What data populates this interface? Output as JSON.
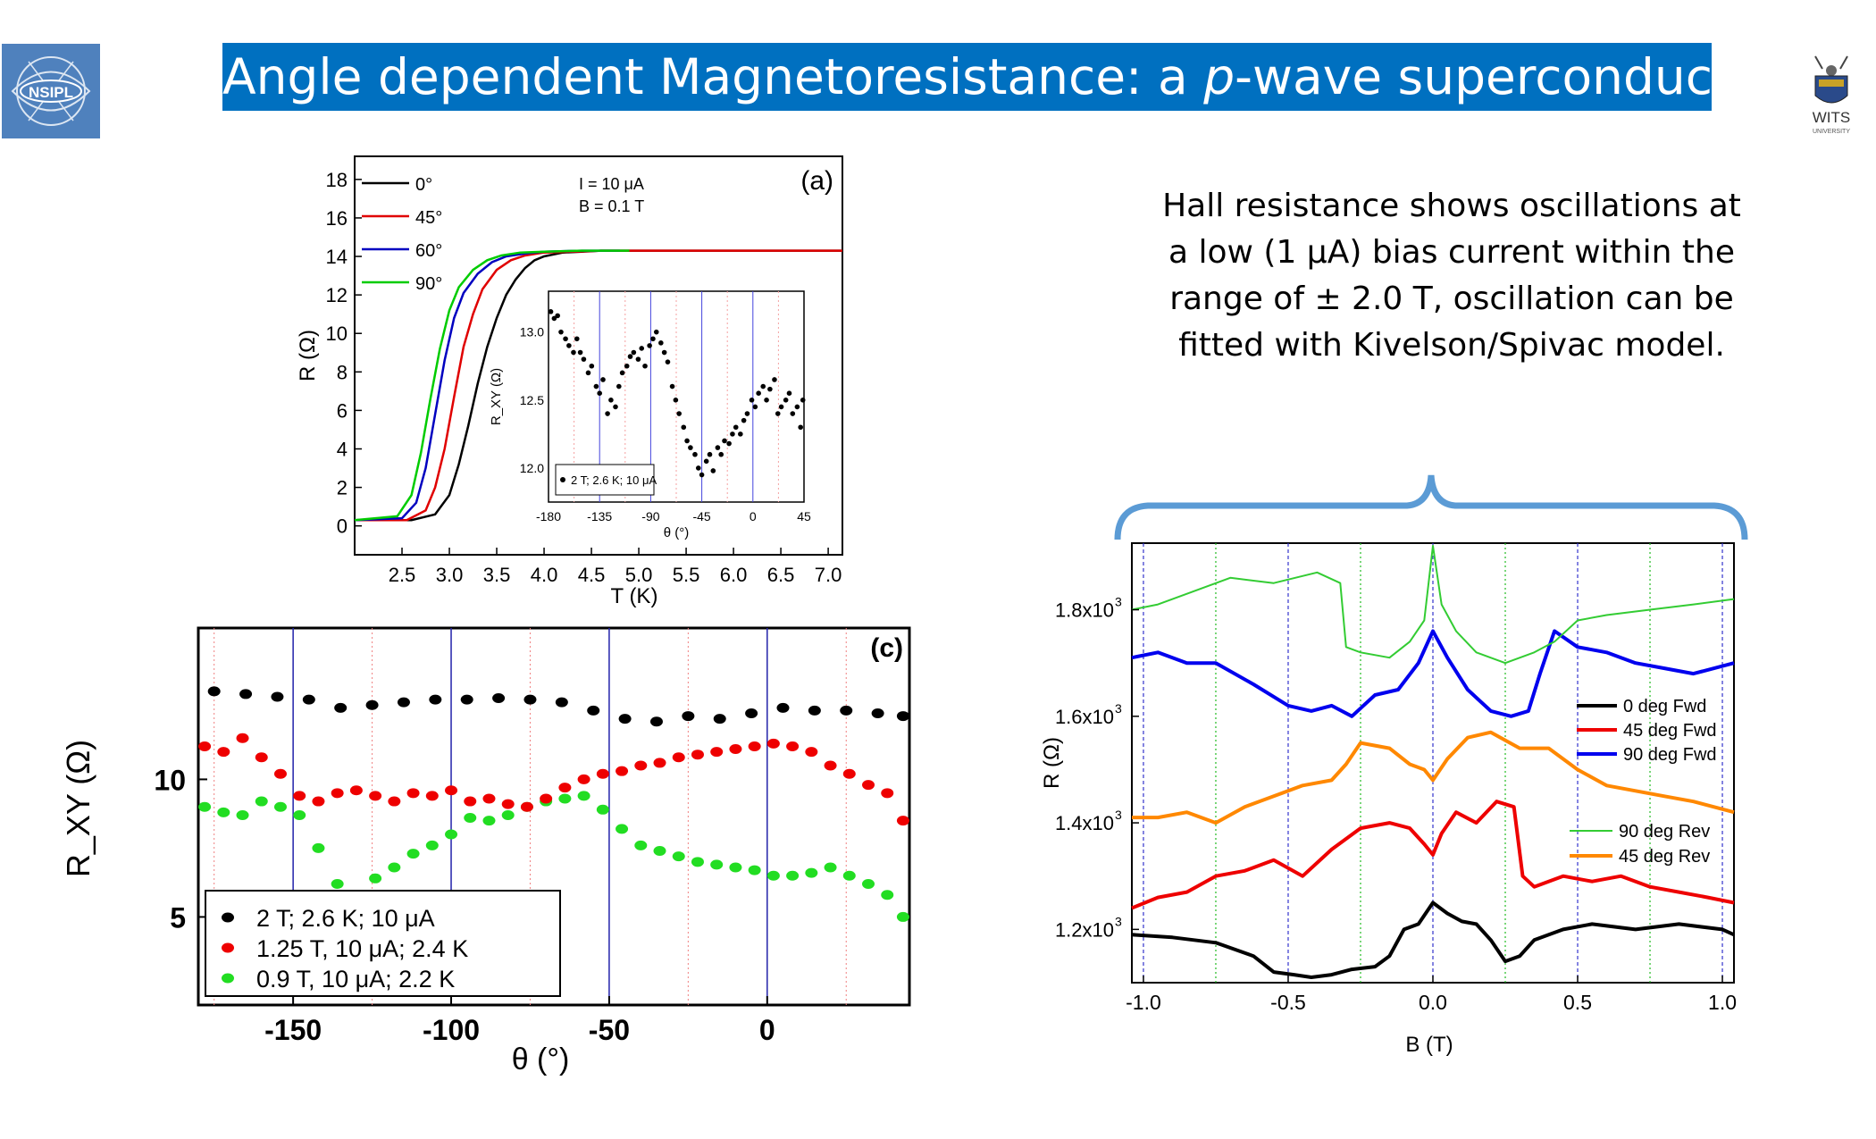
{
  "slide": {
    "title_before": "Angle dependent Magnetoresistance: a ",
    "title_italic": "p",
    "title_after": "-wave superconductivity",
    "logo_left_text": "NSIPL",
    "logo_right_text": "WITS",
    "logo_right_sub": "UNIVERSITY",
    "hall_text": "Hall resistance shows oscillations at a low (1 μA) bias current within the range of ± 2.0 T, oscillation can be fitted with Kivelson/Spivac model."
  },
  "chart_data": [
    {
      "id": "fig-a",
      "type": "line",
      "panel_label": "(a)",
      "xlabel": "T (K)",
      "ylabel": "R (Ω)",
      "xlim": [
        2.0,
        7.15
      ],
      "ylim": [
        -1.5,
        19.2
      ],
      "xticks": [
        2.5,
        3.0,
        3.5,
        4.0,
        4.5,
        5.0,
        5.5,
        6.0,
        6.5,
        7.0
      ],
      "xtick_labels": [
        "2.5",
        "3.0",
        "3.5",
        "4.0",
        "4.5",
        "5.0",
        "5.5",
        "6.0",
        "6.5",
        "7.0"
      ],
      "yticks": [
        0,
        2,
        4,
        6,
        8,
        10,
        12,
        14,
        16,
        18
      ],
      "ytick_labels": [
        "0",
        "2",
        "4",
        "6",
        "8",
        "10",
        "12",
        "14",
        "16",
        "18"
      ],
      "annotations": [
        "I  = 10 μA",
        "B = 0.1 T"
      ],
      "series": [
        {
          "name": "0°",
          "color": "#000000",
          "x": [
            2.0,
            2.6,
            2.85,
            3.0,
            3.1,
            3.2,
            3.3,
            3.4,
            3.5,
            3.6,
            3.7,
            3.8,
            3.9,
            4.0,
            4.2,
            4.4,
            4.6,
            7.15
          ],
          "y": [
            0.3,
            0.3,
            0.6,
            1.6,
            3.2,
            5.2,
            7.4,
            9.3,
            10.8,
            12.0,
            12.8,
            13.4,
            13.8,
            14.0,
            14.2,
            14.25,
            14.3,
            14.3
          ]
        },
        {
          "name": "45°",
          "color": "#e00000",
          "x": [
            2.0,
            2.55,
            2.75,
            2.85,
            2.95,
            3.05,
            3.15,
            3.25,
            3.35,
            3.5,
            3.65,
            3.8,
            4.0,
            4.3,
            4.6,
            7.15
          ],
          "y": [
            0.3,
            0.3,
            0.8,
            2.0,
            4.0,
            6.7,
            9.3,
            11.0,
            12.3,
            13.3,
            13.8,
            14.05,
            14.2,
            14.25,
            14.3,
            14.3
          ]
        },
        {
          "name": "60°",
          "color": "#0000c0",
          "x": [
            2.0,
            2.5,
            2.65,
            2.75,
            2.85,
            2.95,
            3.05,
            3.15,
            3.3,
            3.45,
            3.6,
            3.8,
            4.0,
            4.4,
            4.8
          ],
          "y": [
            0.3,
            0.4,
            1.2,
            3.0,
            5.8,
            8.6,
            10.8,
            12.1,
            13.1,
            13.7,
            14.0,
            14.15,
            14.25,
            14.3,
            14.3
          ]
        },
        {
          "name": "90°",
          "color": "#00cc00",
          "x": [
            2.0,
            2.45,
            2.6,
            2.7,
            2.8,
            2.9,
            3.0,
            3.1,
            3.25,
            3.4,
            3.55,
            3.75,
            4.0,
            4.4,
            4.9
          ],
          "y": [
            0.3,
            0.5,
            1.6,
            3.8,
            6.6,
            9.2,
            11.2,
            12.4,
            13.3,
            13.8,
            14.05,
            14.2,
            14.25,
            14.3,
            14.3
          ]
        }
      ],
      "inset": {
        "xlabel": "θ (°)",
        "ylabel": "R_XY (Ω)",
        "xlim": [
          -180,
          45
        ],
        "ylim": [
          11.75,
          13.3
        ],
        "xticks": [
          -180,
          -135,
          -90,
          -45,
          0,
          45
        ],
        "xtick_labels": [
          "-180",
          "-135",
          "-90",
          "-45",
          "0",
          "45"
        ],
        "yticks": [
          12.0,
          12.5,
          13.0
        ],
        "ytick_labels": [
          "12.0",
          "12.5",
          "13.0"
        ],
        "legend": "2 T; 2.6 K; 10 μA",
        "x": [
          -178,
          -175,
          -172,
          -169,
          -165,
          -162,
          -158,
          -155,
          -152,
          -149,
          -145,
          -142,
          -138,
          -135,
          -132,
          -128,
          -125,
          -121,
          -118,
          -115,
          -111,
          -108,
          -105,
          -101,
          -98,
          -95,
          -91,
          -88,
          -85,
          -81,
          -78,
          -75,
          -71,
          -68,
          -65,
          -61,
          -58,
          -55,
          -51,
          -48,
          -45,
          -41,
          -38,
          -35,
          -31,
          -28,
          -25,
          -21,
          -18,
          -15,
          -11,
          -8,
          -5,
          -1,
          2,
          5,
          9,
          12,
          15,
          19,
          22,
          25,
          29,
          32,
          35,
          39,
          42,
          44
        ],
        "y": [
          13.15,
          13.1,
          13.12,
          13.0,
          12.95,
          12.9,
          12.85,
          12.95,
          12.85,
          12.8,
          12.7,
          12.75,
          12.6,
          12.55,
          12.65,
          12.4,
          12.5,
          12.45,
          12.6,
          12.7,
          12.75,
          12.82,
          12.85,
          12.8,
          12.88,
          12.75,
          12.9,
          12.95,
          13.0,
          12.92,
          12.85,
          12.78,
          12.6,
          12.5,
          12.4,
          12.3,
          12.2,
          12.15,
          12.1,
          12.0,
          11.95,
          12.05,
          12.1,
          11.98,
          12.15,
          12.1,
          12.2,
          12.18,
          12.25,
          12.3,
          12.25,
          12.35,
          12.4,
          12.5,
          12.45,
          12.55,
          12.6,
          12.5,
          12.58,
          12.65,
          12.4,
          12.45,
          12.5,
          12.55,
          12.4,
          12.45,
          12.3,
          12.5
        ]
      }
    },
    {
      "id": "fig-c",
      "type": "scatter",
      "panel_label": "(c)",
      "xlabel": "θ (°)",
      "ylabel": "R_XY (Ω)",
      "xlim": [
        -180,
        45
      ],
      "ylim": [
        1.8,
        15.5
      ],
      "xticks": [
        -150,
        -100,
        -50,
        0
      ],
      "xtick_labels": [
        "-150",
        "-100",
        "-50",
        "0"
      ],
      "yticks": [
        5,
        10
      ],
      "ytick_labels": [
        "5",
        "10"
      ],
      "legend": [
        "2 T; 2.6 K; 10 μA",
        "1.25 T, 10 μA; 2.4 K",
        "0.9 T, 10 μA; 2.2 K"
      ],
      "series": [
        {
          "name": "2 T; 2.6 K; 10 μA",
          "color": "#000000",
          "x": [
            -175,
            -165,
            -155,
            -145,
            -135,
            -125,
            -115,
            -105,
            -95,
            -85,
            -75,
            -65,
            -55,
            -45,
            -35,
            -25,
            -15,
            -5,
            5,
            15,
            25,
            35,
            43
          ],
          "y": [
            13.2,
            13.1,
            13.0,
            12.9,
            12.6,
            12.7,
            12.8,
            12.9,
            12.9,
            12.95,
            12.9,
            12.8,
            12.5,
            12.2,
            12.1,
            12.3,
            12.2,
            12.4,
            12.6,
            12.5,
            12.5,
            12.4,
            12.3
          ]
        },
        {
          "name": "1.25 T, 10 μA; 2.4 K",
          "color": "#ee0000",
          "x": [
            -178,
            -172,
            -166,
            -160,
            -154,
            -148,
            -142,
            -136,
            -130,
            -124,
            -118,
            -112,
            -106,
            -100,
            -94,
            -88,
            -82,
            -76,
            -70,
            -64,
            -58,
            -52,
            -46,
            -40,
            -34,
            -28,
            -22,
            -16,
            -10,
            -4,
            2,
            8,
            14,
            20,
            26,
            32,
            38,
            43
          ],
          "y": [
            11.2,
            11.0,
            11.5,
            10.8,
            10.2,
            9.4,
            9.2,
            9.5,
            9.6,
            9.4,
            9.2,
            9.5,
            9.4,
            9.6,
            9.2,
            9.3,
            9.1,
            9.0,
            9.3,
            9.7,
            10.0,
            10.2,
            10.3,
            10.5,
            10.6,
            10.8,
            10.9,
            11.0,
            11.1,
            11.2,
            11.3,
            11.2,
            11.0,
            10.5,
            10.2,
            9.8,
            9.5,
            8.5
          ]
        },
        {
          "name": "0.9 T, 10 μA; 2.2 K",
          "color": "#22dd22",
          "x": [
            -178,
            -172,
            -166,
            -160,
            -154,
            -148,
            -142,
            -136,
            -130,
            -124,
            -118,
            -112,
            -106,
            -100,
            -94,
            -88,
            -82,
            -76,
            -70,
            -64,
            -58,
            -52,
            -46,
            -40,
            -34,
            -28,
            -22,
            -16,
            -10,
            -4,
            2,
            8,
            14,
            20,
            26,
            32,
            38,
            43
          ],
          "y": [
            9.0,
            8.8,
            8.7,
            9.2,
            9.0,
            8.7,
            7.5,
            6.2,
            5.8,
            6.4,
            6.8,
            7.3,
            7.6,
            8.0,
            8.6,
            8.5,
            8.7,
            9.0,
            9.2,
            9.3,
            9.4,
            8.9,
            8.2,
            7.6,
            7.4,
            7.2,
            7.0,
            6.9,
            6.8,
            6.7,
            6.5,
            6.5,
            6.6,
            6.8,
            6.5,
            6.2,
            5.8,
            5.0
          ]
        }
      ]
    },
    {
      "id": "fig-d",
      "type": "line",
      "xlabel": "B (T)",
      "ylabel": "R (Ω)",
      "xlim": [
        -1.04,
        1.04
      ],
      "ylim": [
        1100,
        1925
      ],
      "xticks": [
        -1.0,
        -0.5,
        0.0,
        0.5,
        1.0
      ],
      "xtick_labels": [
        "-1.0",
        "-0.5",
        "0.0",
        "0.5",
        "1.0"
      ],
      "yticks": [
        1200,
        1400,
        1600,
        1800
      ],
      "ytick_labels": [
        "1.2x10",
        "1.4x10",
        "1.6x10",
        "1.8x10"
      ],
      "ytick_exponent": "3",
      "legend_fwd": [
        "0 deg Fwd",
        "45 deg Fwd",
        "90 deg Fwd"
      ],
      "legend_rev": [
        "90 deg Rev",
        "45 deg Rev"
      ],
      "series": [
        {
          "name": "0 deg Fwd",
          "color": "#000000",
          "width": 4,
          "x": [
            -1.04,
            -0.9,
            -0.75,
            -0.62,
            -0.55,
            -0.48,
            -0.42,
            -0.35,
            -0.28,
            -0.2,
            -0.15,
            -0.1,
            -0.05,
            0.0,
            0.05,
            0.1,
            0.15,
            0.2,
            0.25,
            0.3,
            0.35,
            0.45,
            0.55,
            0.7,
            0.85,
            1.0,
            1.04
          ],
          "y": [
            1190,
            1185,
            1175,
            1150,
            1120,
            1115,
            1110,
            1115,
            1125,
            1130,
            1150,
            1200,
            1210,
            1250,
            1230,
            1215,
            1210,
            1180,
            1140,
            1150,
            1180,
            1200,
            1210,
            1200,
            1210,
            1200,
            1190
          ]
        },
        {
          "name": "45 deg Fwd",
          "color": "#ee0000",
          "width": 4,
          "x": [
            -1.04,
            -0.95,
            -0.85,
            -0.75,
            -0.65,
            -0.55,
            -0.45,
            -0.35,
            -0.25,
            -0.15,
            -0.08,
            -0.03,
            0.0,
            0.03,
            0.08,
            0.15,
            0.22,
            0.28,
            0.31,
            0.35,
            0.45,
            0.55,
            0.65,
            0.75,
            0.85,
            0.95,
            1.04
          ],
          "y": [
            1240,
            1260,
            1270,
            1300,
            1310,
            1330,
            1300,
            1350,
            1390,
            1400,
            1390,
            1360,
            1340,
            1380,
            1420,
            1400,
            1440,
            1430,
            1300,
            1280,
            1300,
            1290,
            1300,
            1280,
            1270,
            1260,
            1250
          ]
        },
        {
          "name": "90 deg Fwd",
          "color": "#0000ee",
          "width": 4,
          "x": [
            -1.04,
            -0.95,
            -0.85,
            -0.75,
            -0.62,
            -0.5,
            -0.42,
            -0.35,
            -0.28,
            -0.2,
            -0.12,
            -0.05,
            0.0,
            0.05,
            0.12,
            0.2,
            0.27,
            0.33,
            0.37,
            0.42,
            0.5,
            0.6,
            0.7,
            0.8,
            0.9,
            1.04
          ],
          "y": [
            1710,
            1720,
            1700,
            1700,
            1660,
            1620,
            1610,
            1620,
            1600,
            1640,
            1650,
            1700,
            1760,
            1710,
            1650,
            1610,
            1600,
            1610,
            1680,
            1760,
            1730,
            1720,
            1700,
            1690,
            1680,
            1700
          ]
        },
        {
          "name": "90 deg Rev",
          "color": "#33cc33",
          "width": 2,
          "x": [
            -1.04,
            -0.95,
            -0.85,
            -0.7,
            -0.55,
            -0.4,
            -0.32,
            -0.3,
            -0.25,
            -0.15,
            -0.08,
            -0.03,
            0.0,
            0.03,
            0.08,
            0.15,
            0.25,
            0.35,
            0.42,
            0.5,
            0.6,
            0.75,
            0.9,
            1.04
          ],
          "y": [
            1800,
            1810,
            1830,
            1860,
            1850,
            1870,
            1850,
            1730,
            1720,
            1710,
            1740,
            1780,
            1920,
            1810,
            1760,
            1720,
            1700,
            1720,
            1740,
            1780,
            1790,
            1800,
            1810,
            1820
          ]
        },
        {
          "name": "45 deg Rev",
          "color": "#ff8800",
          "width": 4,
          "x": [
            -1.04,
            -0.95,
            -0.85,
            -0.75,
            -0.65,
            -0.55,
            -0.45,
            -0.35,
            -0.3,
            -0.25,
            -0.15,
            -0.08,
            -0.03,
            0.0,
            0.05,
            0.12,
            0.2,
            0.3,
            0.4,
            0.5,
            0.6,
            0.7,
            0.8,
            0.9,
            1.04
          ],
          "y": [
            1410,
            1410,
            1420,
            1400,
            1430,
            1450,
            1470,
            1480,
            1510,
            1550,
            1540,
            1510,
            1500,
            1480,
            1520,
            1560,
            1570,
            1540,
            1540,
            1500,
            1470,
            1460,
            1450,
            1440,
            1420
          ]
        }
      ]
    }
  ]
}
